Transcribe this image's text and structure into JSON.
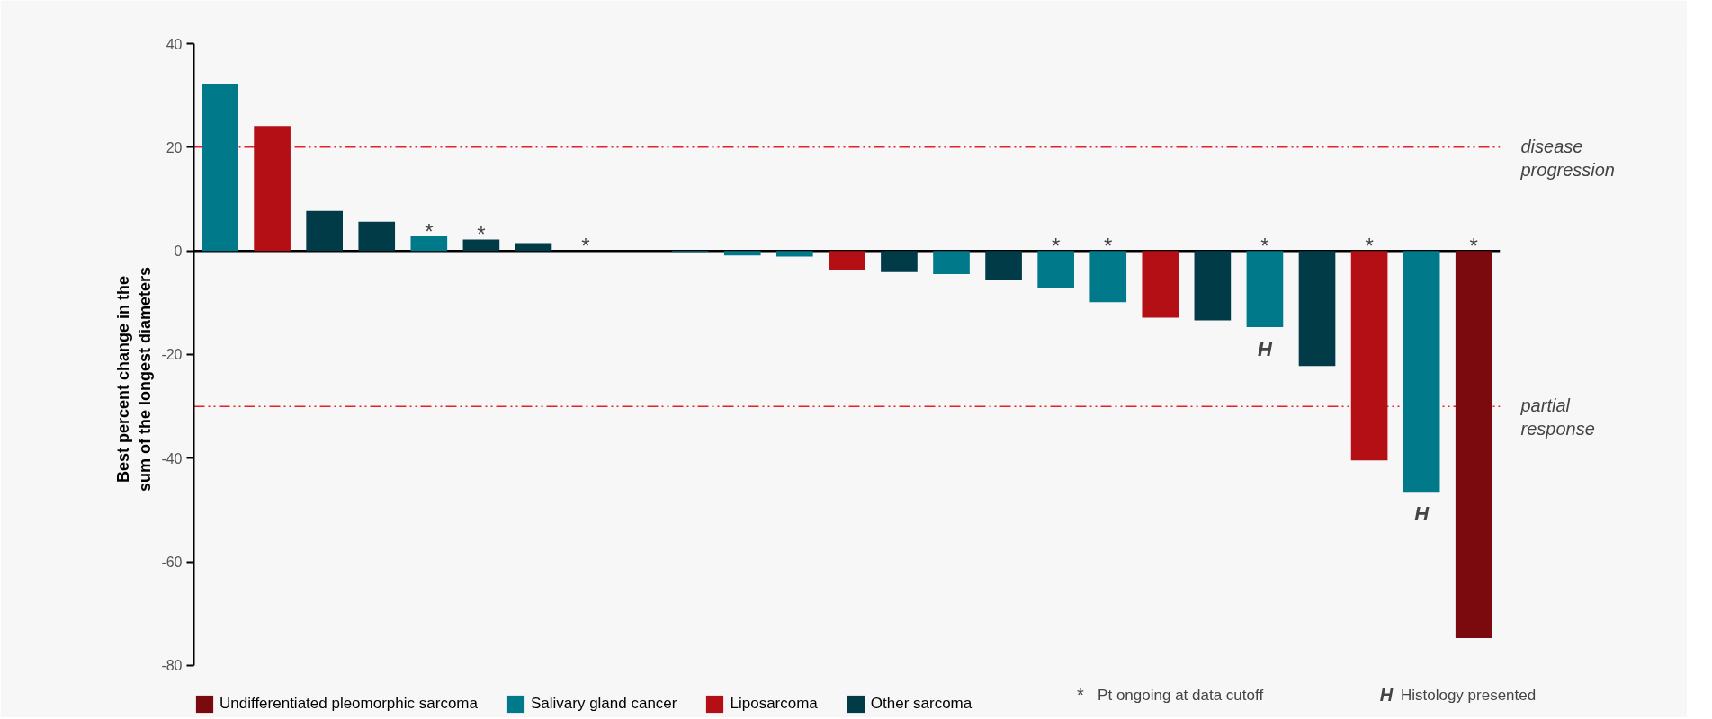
{
  "chart_data": {
    "type": "bar",
    "ylabel": "Best percent change in the sum of the longest diameters",
    "categories": [
      null,
      null,
      null,
      null,
      null,
      null,
      null,
      null,
      null,
      null,
      null,
      null,
      null,
      null,
      null,
      null,
      null,
      null,
      null,
      null,
      null,
      null,
      null,
      null,
      null
    ],
    "series": [
      {
        "name": "Undifferentiated pleomorphic sarcoma",
        "color": "#7a0a0e",
        "values": [
          null,
          null,
          null,
          null,
          null,
          null,
          null,
          null,
          null,
          null,
          null,
          null,
          null,
          null,
          null,
          null,
          null,
          null,
          null,
          null,
          null,
          null,
          null,
          null,
          -74.7
        ],
        "value_labels": [
          null,
          null,
          null,
          null,
          null,
          null,
          null,
          null,
          null,
          null,
          null,
          null,
          null,
          null,
          null,
          null,
          null,
          null,
          null,
          null,
          null,
          null,
          null,
          null,
          "*"
        ]
      },
      {
        "name": "Salivary gland cancer",
        "color": "#007a8a",
        "values": [
          32.3,
          null,
          null,
          null,
          2.8,
          null,
          null,
          null,
          0,
          -0.2,
          -0.9,
          -1.1,
          null,
          null,
          -4.5,
          null,
          -7.2,
          -9.9,
          null,
          null,
          -14.7,
          null,
          null,
          -46.5,
          null
        ],
        "value_labels": [
          null,
          null,
          null,
          null,
          "*",
          null,
          null,
          null,
          null,
          null,
          null,
          null,
          null,
          null,
          null,
          null,
          "*",
          "*",
          null,
          null,
          "*",
          null,
          null,
          null,
          null
        ]
      },
      {
        "name": "Liposarcoma",
        "color": "#b50f16",
        "values": [
          null,
          24.1,
          null,
          null,
          null,
          null,
          null,
          null,
          null,
          null,
          null,
          null,
          -3.6,
          null,
          null,
          null,
          null,
          null,
          -12.9,
          null,
          null,
          null,
          -40.4,
          null,
          null
        ],
        "value_labels": [
          null,
          null,
          null,
          null,
          null,
          null,
          null,
          null,
          null,
          null,
          null,
          null,
          null,
          null,
          null,
          null,
          null,
          null,
          null,
          null,
          null,
          null,
          "*",
          null,
          null
        ]
      },
      {
        "name": "Other sarcoma",
        "color": "#003b47",
        "values": [
          null,
          null,
          7.7,
          5.6,
          null,
          2.2,
          1.5,
          0,
          null,
          null,
          null,
          null,
          null,
          -4.1,
          null,
          -5.6,
          null,
          null,
          null,
          -13.4,
          null,
          -22.2,
          null,
          null,
          null
        ],
        "value_labels": [
          null,
          null,
          null,
          null,
          null,
          "*",
          null,
          "*",
          null,
          null,
          null,
          null,
          null,
          null,
          null,
          null,
          null,
          null,
          null,
          null,
          null,
          null,
          null,
          null,
          null
        ]
      }
    ],
    "annotations": [
      {
        "text": "H",
        "y": -14.7
      },
      {
        "text": "H",
        "y": -46.5
      },
      "* Pt ongoing at data cutoff",
      "H Histology presented"
    ],
    "ref_lines": [
      {
        "axis": "y",
        "value": 20,
        "label": "disease progression",
        "color": "#e8202a",
        "line_style": "dashdot"
      },
      {
        "axis": "y",
        "value": -30,
        "label": "partial response",
        "color": "#e8202a",
        "line_style": "dashdot"
      }
    ],
    "ylim": [
      -80,
      40
    ],
    "yticks": [
      -80,
      -60,
      -40,
      -20,
      0,
      20,
      40
    ],
    "grid": false,
    "legend": "bottom",
    "tick_labels": "y"
  }
}
